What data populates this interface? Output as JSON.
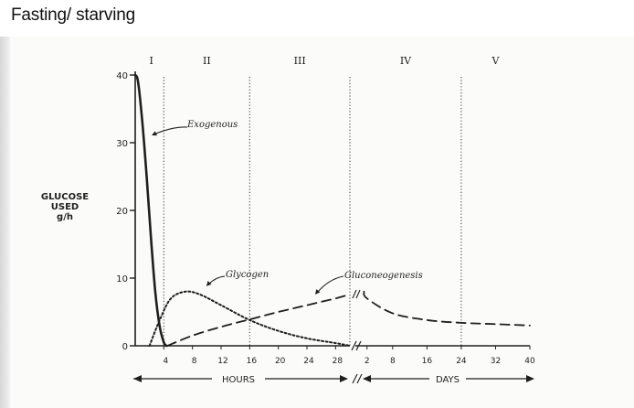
{
  "title": "Fasting/ starving",
  "chart_data": {
    "type": "line",
    "ylabel_lines": [
      "GLUCOSE",
      "USED",
      "g/h"
    ],
    "yticks": [
      0,
      10,
      20,
      30,
      40
    ],
    "ylim": [
      0,
      40
    ],
    "phase_labels": [
      "I",
      "II",
      "III",
      "IV",
      "V"
    ],
    "hours_axis": {
      "label": "HOURS",
      "ticks": [
        4,
        8,
        12,
        16,
        20,
        24,
        28
      ],
      "range": [
        0,
        30
      ]
    },
    "days_axis": {
      "label": "DAYS",
      "ticks": [
        2,
        8,
        16,
        24,
        32,
        40
      ],
      "range": [
        1,
        40
      ]
    },
    "phase_boundaries": [
      {
        "axis": "hours",
        "value": 4
      },
      {
        "axis": "hours",
        "value": 16
      },
      {
        "axis": "hours",
        "value": 30
      },
      {
        "axis": "days",
        "value": 24
      }
    ],
    "series": [
      {
        "name": "Exogenous",
        "style": "solid",
        "points": [
          {
            "axis": "hours",
            "x": 0,
            "y": 40
          },
          {
            "axis": "hours",
            "x": 0.4,
            "y": 39
          },
          {
            "axis": "hours",
            "x": 1,
            "y": 33
          },
          {
            "axis": "hours",
            "x": 1.6,
            "y": 25
          },
          {
            "axis": "hours",
            "x": 2.2,
            "y": 16
          },
          {
            "axis": "hours",
            "x": 2.8,
            "y": 8
          },
          {
            "axis": "hours",
            "x": 3.4,
            "y": 3
          },
          {
            "axis": "hours",
            "x": 4,
            "y": 0.5
          },
          {
            "axis": "hours",
            "x": 4.4,
            "y": 0
          }
        ]
      },
      {
        "name": "Glycogen",
        "style": "dotted",
        "points": [
          {
            "axis": "hours",
            "x": 2,
            "y": 0
          },
          {
            "axis": "hours",
            "x": 3.5,
            "y": 4
          },
          {
            "axis": "hours",
            "x": 5,
            "y": 7
          },
          {
            "axis": "hours",
            "x": 7,
            "y": 8
          },
          {
            "axis": "hours",
            "x": 9,
            "y": 7.6
          },
          {
            "axis": "hours",
            "x": 12,
            "y": 6
          },
          {
            "axis": "hours",
            "x": 16,
            "y": 3.8
          },
          {
            "axis": "hours",
            "x": 20,
            "y": 2.2
          },
          {
            "axis": "hours",
            "x": 24,
            "y": 1.1
          },
          {
            "axis": "hours",
            "x": 28,
            "y": 0.4
          },
          {
            "axis": "hours",
            "x": 30,
            "y": 0
          }
        ]
      },
      {
        "name": "Gluconeogenesis",
        "style": "dashed",
        "points": [
          {
            "axis": "hours",
            "x": 4.5,
            "y": 0
          },
          {
            "axis": "hours",
            "x": 8,
            "y": 1.5
          },
          {
            "axis": "hours",
            "x": 12,
            "y": 2.8
          },
          {
            "axis": "hours",
            "x": 16,
            "y": 3.9
          },
          {
            "axis": "hours",
            "x": 20,
            "y": 5
          },
          {
            "axis": "hours",
            "x": 24,
            "y": 6
          },
          {
            "axis": "hours",
            "x": 28,
            "y": 7
          },
          {
            "axis": "hours",
            "x": 30,
            "y": 7.6
          },
          {
            "axis": "days",
            "x": 1.3,
            "y": 8
          },
          {
            "axis": "days",
            "x": 2,
            "y": 7
          },
          {
            "axis": "days",
            "x": 8,
            "y": 4.8
          },
          {
            "axis": "days",
            "x": 16,
            "y": 3.8
          },
          {
            "axis": "days",
            "x": 24,
            "y": 3.4
          },
          {
            "axis": "days",
            "x": 32,
            "y": 3.2
          },
          {
            "axis": "days",
            "x": 40,
            "y": 3
          }
        ]
      }
    ]
  }
}
